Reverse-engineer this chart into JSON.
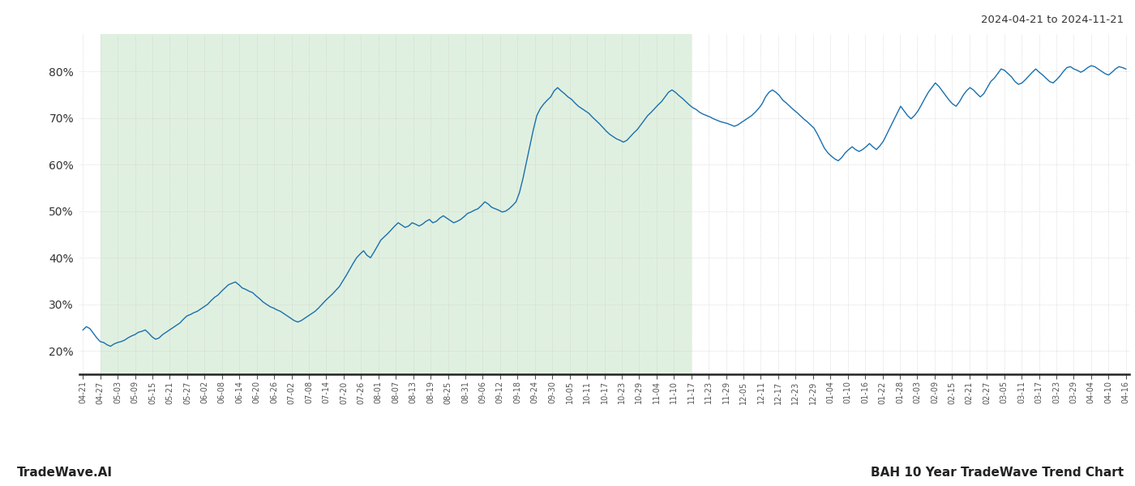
{
  "title_top_right": "2024-04-21 to 2024-11-21",
  "title_bottom_left": "TradeWave.AI",
  "title_bottom_right": "BAH 10 Year TradeWave Trend Chart",
  "line_color": "#1a6fad",
  "shade_color": "#d4ead4",
  "shade_alpha": 0.7,
  "background_color": "#ffffff",
  "grid_color": "#c8c8c8",
  "ylim": [
    15,
    88
  ],
  "yticks": [
    20,
    30,
    40,
    50,
    60,
    70,
    80
  ],
  "x_labels": [
    "04-21",
    "04-27",
    "05-03",
    "05-09",
    "05-15",
    "05-21",
    "05-27",
    "06-02",
    "06-08",
    "06-14",
    "06-20",
    "06-26",
    "07-02",
    "07-08",
    "07-14",
    "07-20",
    "07-26",
    "08-01",
    "08-07",
    "08-13",
    "08-19",
    "08-25",
    "08-31",
    "09-06",
    "09-12",
    "09-18",
    "09-24",
    "09-30",
    "10-05",
    "10-11",
    "10-17",
    "10-23",
    "10-29",
    "11-04",
    "11-10",
    "11-17",
    "11-23",
    "11-29",
    "12-05",
    "12-11",
    "12-17",
    "12-23",
    "12-29",
    "01-04",
    "01-10",
    "01-16",
    "01-22",
    "01-28",
    "02-03",
    "02-09",
    "02-15",
    "02-21",
    "02-27",
    "03-05",
    "03-11",
    "03-17",
    "03-23",
    "03-29",
    "04-04",
    "04-10",
    "04-16"
  ],
  "shade_label_start": "04-27",
  "shade_label_end": "11-17",
  "values": [
    24.5,
    25.2,
    24.8,
    23.8,
    22.8,
    22.0,
    21.8,
    21.3,
    21.0,
    21.5,
    21.8,
    22.0,
    22.3,
    22.8,
    23.2,
    23.5,
    24.0,
    24.2,
    24.5,
    23.8,
    23.0,
    22.5,
    22.8,
    23.5,
    24.0,
    24.5,
    25.0,
    25.5,
    26.0,
    26.8,
    27.5,
    27.8,
    28.2,
    28.5,
    29.0,
    29.5,
    30.0,
    30.8,
    31.5,
    32.0,
    32.8,
    33.5,
    34.2,
    34.5,
    34.8,
    34.2,
    33.5,
    33.2,
    32.8,
    32.5,
    31.8,
    31.2,
    30.5,
    30.0,
    29.5,
    29.2,
    28.8,
    28.5,
    28.0,
    27.5,
    27.0,
    26.5,
    26.2,
    26.5,
    27.0,
    27.5,
    28.0,
    28.5,
    29.2,
    30.0,
    30.8,
    31.5,
    32.2,
    33.0,
    33.8,
    35.0,
    36.2,
    37.5,
    38.8,
    40.0,
    40.8,
    41.5,
    40.5,
    40.0,
    41.2,
    42.5,
    43.8,
    44.5,
    45.2,
    46.0,
    46.8,
    47.5,
    47.0,
    46.5,
    46.8,
    47.5,
    47.2,
    46.8,
    47.2,
    47.8,
    48.2,
    47.5,
    47.8,
    48.5,
    49.0,
    48.5,
    48.0,
    47.5,
    47.8,
    48.2,
    48.8,
    49.5,
    49.8,
    50.2,
    50.5,
    51.2,
    52.0,
    51.5,
    50.8,
    50.5,
    50.2,
    49.8,
    50.0,
    50.5,
    51.2,
    52.0,
    54.0,
    57.0,
    60.5,
    64.0,
    67.5,
    70.5,
    72.0,
    73.0,
    73.8,
    74.5,
    75.8,
    76.5,
    75.8,
    75.2,
    74.5,
    74.0,
    73.2,
    72.5,
    72.0,
    71.5,
    71.0,
    70.2,
    69.5,
    68.8,
    68.0,
    67.2,
    66.5,
    66.0,
    65.5,
    65.2,
    64.8,
    65.2,
    66.0,
    66.8,
    67.5,
    68.5,
    69.5,
    70.5,
    71.2,
    72.0,
    72.8,
    73.5,
    74.5,
    75.5,
    76.0,
    75.5,
    74.8,
    74.2,
    73.5,
    72.8,
    72.2,
    71.8,
    71.2,
    70.8,
    70.5,
    70.2,
    69.8,
    69.5,
    69.2,
    69.0,
    68.8,
    68.5,
    68.2,
    68.5,
    69.0,
    69.5,
    70.0,
    70.5,
    71.2,
    72.0,
    73.0,
    74.5,
    75.5,
    76.0,
    75.5,
    74.8,
    73.8,
    73.2,
    72.5,
    71.8,
    71.2,
    70.5,
    69.8,
    69.2,
    68.5,
    67.8,
    66.5,
    65.0,
    63.5,
    62.5,
    61.8,
    61.2,
    60.8,
    61.5,
    62.5,
    63.2,
    63.8,
    63.2,
    62.8,
    63.2,
    63.8,
    64.5,
    63.8,
    63.2,
    64.0,
    65.0,
    66.5,
    68.0,
    69.5,
    71.0,
    72.5,
    71.5,
    70.5,
    69.8,
    70.5,
    71.5,
    72.8,
    74.2,
    75.5,
    76.5,
    77.5,
    76.8,
    75.8,
    74.8,
    73.8,
    73.0,
    72.5,
    73.5,
    74.8,
    75.8,
    76.5,
    76.0,
    75.2,
    74.5,
    75.2,
    76.5,
    77.8,
    78.5,
    79.5,
    80.5,
    80.2,
    79.5,
    78.8,
    77.8,
    77.2,
    77.5,
    78.2,
    79.0,
    79.8,
    80.5,
    79.8,
    79.2,
    78.5,
    77.8,
    77.5,
    78.2,
    79.0,
    80.0,
    80.8,
    81.0,
    80.5,
    80.2,
    79.8,
    80.2,
    80.8,
    81.2,
    81.0,
    80.5,
    80.0,
    79.5,
    79.2,
    79.8,
    80.5,
    81.0,
    80.8,
    80.5
  ]
}
